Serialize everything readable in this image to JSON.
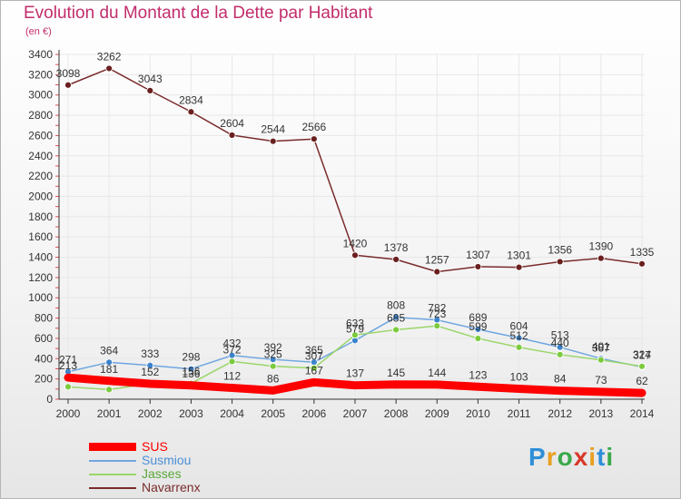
{
  "header": {
    "title": "Evolution du Montant de la Dette par Habitant",
    "subtitle": "(en €)"
  },
  "brand": {
    "letters": [
      "P",
      "r",
      "o",
      "x",
      "i",
      "t",
      "i"
    ],
    "colors": [
      "#2f8fd8",
      "#e8a020",
      "#3aa94a",
      "#d8382a",
      "#e8a020",
      "#2f8fd8",
      "#3aa94a"
    ]
  },
  "colors": {
    "title": "#c22d6c",
    "sus": "#ff0000",
    "susmiou": "#6fa6e0",
    "jasses": "#9ad66a",
    "navarrenx": "#7a2b2b",
    "axis": "#333333",
    "grid": "#e8e8e8",
    "minor_tick": "#e05050"
  },
  "chart_data": {
    "type": "line",
    "x": [
      "2000",
      "2001",
      "2002",
      "2003",
      "2004",
      "2005",
      "2006",
      "2007",
      "2008",
      "2009",
      "2010",
      "2011",
      "2012",
      "2013",
      "2014"
    ],
    "ylim": [
      0,
      3400
    ],
    "yticks": [
      "0",
      "200",
      "400",
      "600",
      "800",
      "1000",
      "1200",
      "1400",
      "1600",
      "1800",
      "2000",
      "2200",
      "2400",
      "2600",
      "2800",
      "3000",
      "3200",
      "3400"
    ],
    "title": "Evolution du Montant de la Dette par Habitant",
    "subtitle": "(en €)",
    "grid": true,
    "legend_position": "bottom-left",
    "series": [
      {
        "name": "SUS",
        "color": "#ff0000",
        "width": 9,
        "markers": false,
        "values": [
          213,
          181,
          152,
          136,
          112,
          86,
          167,
          137,
          145,
          144,
          123,
          103,
          84,
          73,
          62
        ],
        "labels": [
          "213",
          "181",
          "152",
          "136",
          "112",
          "86",
          "167",
          "137",
          "145",
          "144",
          "123",
          "103",
          "84",
          "73",
          "62"
        ]
      },
      {
        "name": "Susmiou",
        "color": "#6fa6e0",
        "width": 1.5,
        "markers": true,
        "marker_fill": "#3c83cc",
        "values": [
          271,
          364,
          333,
          298,
          432,
          392,
          365,
          579,
          808,
          782,
          689,
          604,
          513,
          401,
          317
        ],
        "labels": [
          "271",
          "364",
          "333",
          "298",
          "432",
          "392",
          "365",
          "579",
          "808",
          "782",
          "689",
          "604",
          "513",
          "401",
          "317"
        ]
      },
      {
        "name": "Jasses",
        "color": "#9ad66a",
        "width": 1.5,
        "markers": true,
        "marker_fill": "#7ccb3e",
        "values": [
          122,
          95,
          152,
          156,
          372,
          325,
          307,
          633,
          685,
          723,
          599,
          512,
          440,
          387,
          324
        ],
        "labels": [
          "",
          "",
          "",
          "156",
          "372",
          "325",
          "307",
          "633",
          "685",
          "723",
          "599",
          "512",
          "440",
          "387",
          "324"
        ]
      },
      {
        "name": "Navarrenx",
        "color": "#7a2b2b",
        "width": 1.5,
        "markers": true,
        "marker_fill": "#6a1f1f",
        "values": [
          3098,
          3262,
          3043,
          2834,
          2604,
          2544,
          2566,
          1420,
          1378,
          1257,
          1307,
          1301,
          1356,
          1390,
          1335
        ],
        "labels": [
          "3098",
          "3262",
          "3043",
          "2834",
          "2604",
          "2544",
          "2566",
          "1420",
          "1378",
          "1257",
          "1307",
          "1301",
          "1356",
          "1390",
          "1335"
        ]
      }
    ]
  }
}
